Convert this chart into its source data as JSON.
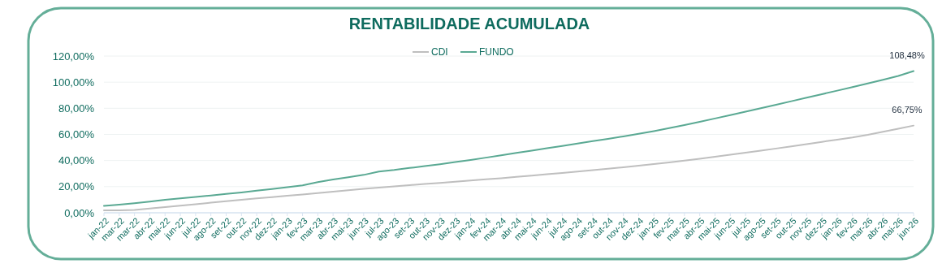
{
  "chart_data": {
    "type": "line",
    "title": "RENTABILIDADE ACUMULADA",
    "categories": [
      "jan-22",
      "mar-22",
      "mar-22",
      "abr-22",
      "mai-22",
      "jun-22",
      "jul-22",
      "ago-22",
      "set-22",
      "out-22",
      "nov-22",
      "dez-22",
      "jan-23",
      "fev-23",
      "mar-23",
      "abr-23",
      "mai-23",
      "jun-23",
      "jul-23",
      "ago-23",
      "set-23",
      "out-23",
      "nov-23",
      "dez-23",
      "jan-24",
      "fev-24",
      "mar-24",
      "abr-24",
      "mai-24",
      "jun-24",
      "jul-24",
      "ago-24",
      "set-24",
      "out-24",
      "nov-24",
      "dez-24",
      "jan-25",
      "fev-25",
      "mar-25",
      "abr-25",
      "mai-25",
      "jun-25",
      "jul-25",
      "ago-25",
      "set-25",
      "out-25",
      "nov-25",
      "dez-25",
      "jan-26",
      "fev-26",
      "mar-26",
      "abr-26",
      "mai-26",
      "jun-26"
    ],
    "series": [
      {
        "name": "CDI",
        "color": "#bfbfbf",
        "values": [
          1.8,
          1.8,
          2.2,
          3.3,
          4.4,
          5.5,
          6.6,
          7.7,
          8.8,
          9.9,
          11.0,
          12.0,
          13.0,
          14.0,
          15.1,
          16.2,
          17.3,
          18.4,
          19.3,
          20.2,
          21.1,
          22.0,
          22.9,
          23.8,
          24.7,
          25.6,
          26.5,
          27.5,
          28.5,
          29.5,
          30.5,
          31.5,
          32.6,
          33.7,
          34.8,
          36.0,
          37.3,
          38.6,
          40.0,
          41.4,
          42.9,
          44.4,
          46.0,
          47.6,
          49.2,
          50.9,
          52.6,
          54.3,
          56.0,
          57.7,
          59.7,
          62.0,
          64.4,
          66.75
        ],
        "value_labels": [
          null,
          null,
          null,
          null,
          null,
          null,
          null,
          null,
          null,
          null,
          null,
          null,
          null,
          null,
          null,
          null,
          null,
          null,
          null,
          null,
          null,
          null,
          null,
          null,
          null,
          null,
          null,
          null,
          null,
          null,
          null,
          null,
          null,
          null,
          null,
          null,
          null,
          null,
          null,
          null,
          null,
          null,
          null,
          null,
          null,
          null,
          null,
          null,
          null,
          null,
          null,
          null,
          null,
          "66,75%"
        ]
      },
      {
        "name": "FUNDO",
        "color": "#5aa993",
        "values": [
          5.3,
          6.2,
          7.3,
          8.5,
          9.9,
          11.0,
          12.1,
          13.2,
          14.4,
          15.6,
          16.9,
          18.2,
          19.6,
          21.0,
          23.5,
          25.5,
          27.2,
          29.0,
          31.6,
          32.8,
          34.3,
          35.7,
          37.2,
          38.8,
          40.4,
          42.2,
          44.0,
          45.8,
          47.6,
          49.4,
          51.2,
          53.0,
          54.8,
          56.6,
          58.5,
          60.4,
          62.5,
          64.8,
          67.2,
          69.6,
          72.2,
          74.8,
          77.4,
          80.0,
          82.7,
          85.4,
          88.1,
          90.8,
          93.5,
          96.2,
          99.0,
          101.8,
          104.8,
          108.48
        ],
        "value_labels": [
          null,
          null,
          null,
          null,
          null,
          null,
          null,
          null,
          null,
          null,
          null,
          null,
          null,
          null,
          null,
          null,
          null,
          null,
          null,
          null,
          null,
          null,
          null,
          null,
          null,
          null,
          null,
          null,
          null,
          null,
          null,
          null,
          null,
          null,
          null,
          null,
          null,
          null,
          null,
          null,
          null,
          null,
          null,
          null,
          null,
          null,
          null,
          null,
          null,
          null,
          null,
          null,
          null,
          "108,48%"
        ]
      }
    ],
    "ylim": [
      0,
      120
    ],
    "yticks": [
      {
        "value": 0,
        "label": "0,00%"
      },
      {
        "value": 20,
        "label": "20,00%"
      },
      {
        "value": 40,
        "label": "40,00%"
      },
      {
        "value": 60,
        "label": "60,00%"
      },
      {
        "value": 80,
        "label": "80,00%"
      },
      {
        "value": 100,
        "label": "100,00%"
      },
      {
        "value": 120,
        "label": "120,00%"
      }
    ],
    "grid": "y",
    "legend": "top",
    "marker": "none",
    "line_style": "solid"
  }
}
